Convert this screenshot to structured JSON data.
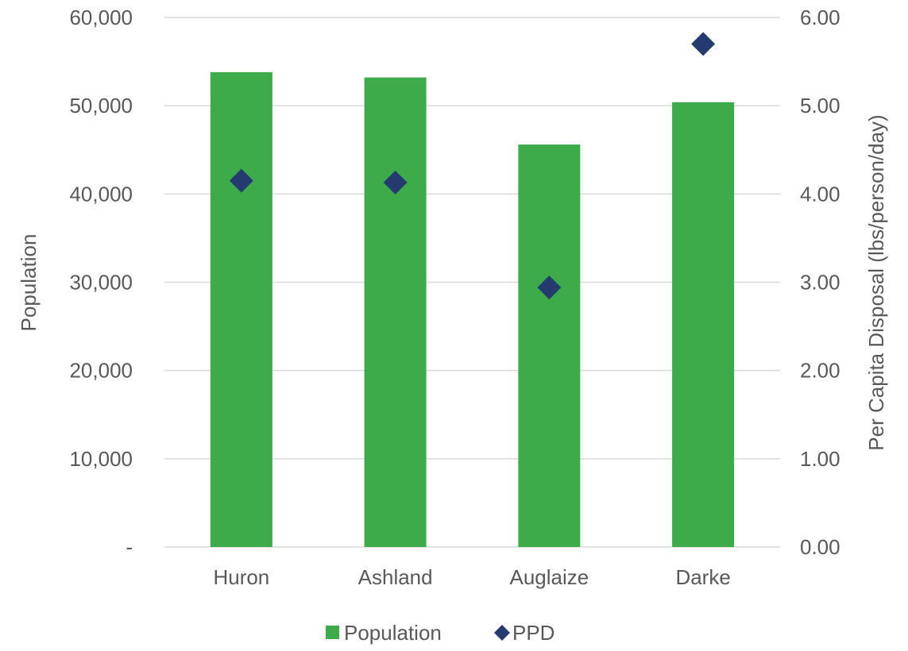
{
  "chart_data": {
    "type": "bar",
    "categories": [
      "Huron",
      "Ashland",
      "Auglaize",
      "Darke"
    ],
    "series": [
      {
        "name": "Population",
        "type": "bar",
        "axis": "left",
        "color": "#3dab4a",
        "values": [
          53800,
          53200,
          45600,
          50400
        ]
      },
      {
        "name": "PPD",
        "type": "scatter",
        "marker": "diamond",
        "axis": "right",
        "color": "#253a6e",
        "values": [
          4.15,
          4.13,
          2.94,
          5.7
        ]
      }
    ],
    "ylabel": "Population",
    "y2label": "Per Capita Disposal (lbs/person/day)",
    "ylim": [
      0,
      60000
    ],
    "y2lim": [
      0,
      6
    ],
    "yticks": [
      "-",
      "10,000",
      "20,000",
      "30,000",
      "40,000",
      "50,000",
      "60,000"
    ],
    "y2ticks": [
      "0.00",
      "1.00",
      "2.00",
      "3.00",
      "4.00",
      "5.00",
      "6.00"
    ],
    "grid": true,
    "legend": "bottom-center",
    "colors": {
      "grid": "#d9d9d9",
      "text": "#595959"
    }
  }
}
